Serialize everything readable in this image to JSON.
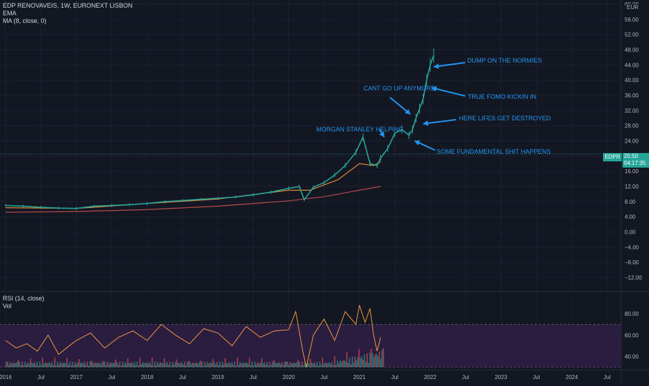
{
  "header": {
    "symbol_line": "EDP RENOVAVEIS, 1W, EURONEXT LISBON",
    "indicator_1": "EMA",
    "indicator_2": "MA (8, close, 0)",
    "currency": "EUR"
  },
  "price_tag": {
    "ticker": "EDPR",
    "price": "20.50",
    "countdown": "04:17:35"
  },
  "rsi_panel": {
    "label_1": "RSI (14, close)",
    "label_2": "Vol"
  },
  "colors": {
    "background": "#131722",
    "candles": "#26a69a",
    "ma_line": "#e08a3c",
    "ema_line": "#b84c4c",
    "annotation": "#2196f3",
    "rsi_line": "#f09a3e",
    "rsi_band": "#2a1d3f"
  },
  "chart_data": [
    {
      "type": "line",
      "title": "EDP RENOVAVEIS, 1W, EURONEXT LISBON",
      "ylabel": "EUR",
      "ylim": [
        -14,
        60
      ],
      "y_ticks": [
        "60.00",
        "56.00",
        "52.00",
        "48.00",
        "44.00",
        "40.00",
        "36.00",
        "32.00",
        "28.00",
        "24.00",
        "20.00",
        "16.00",
        "12.00",
        "8.00",
        "4.00",
        "0.00",
        "−4.00",
        "−8.00",
        "−12.00"
      ],
      "x_ticks": [
        "2016",
        "Jul",
        "2017",
        "Jul",
        "2018",
        "Jul",
        "2019",
        "Jul",
        "2020",
        "Jul",
        "2021",
        "Jul",
        "2022",
        "Jul",
        "2023",
        "Jul",
        "2024",
        "Jul"
      ],
      "series": [
        {
          "name": "EDPR",
          "x": [
            2016.0,
            2016.25,
            2016.5,
            2016.75,
            2017.0,
            2017.25,
            2017.5,
            2017.75,
            2018.0,
            2018.25,
            2018.5,
            2018.75,
            2019.0,
            2019.25,
            2019.5,
            2019.75,
            2020.0,
            2020.15,
            2020.22,
            2020.35,
            2020.5,
            2020.65,
            2020.8,
            2020.95,
            2021.05,
            2021.15,
            2021.25,
            2021.3,
            2021.4,
            2021.5,
            2021.6,
            2021.7,
            2021.75,
            2021.8,
            2021.85,
            2021.9,
            2021.95,
            2022.0,
            2022.05
          ],
          "values": [
            7.0,
            6.8,
            6.5,
            6.3,
            6.2,
            6.8,
            7.0,
            7.2,
            7.5,
            8.0,
            8.3,
            8.6,
            8.9,
            9.2,
            9.8,
            10.5,
            11.5,
            12.0,
            8.5,
            11.8,
            13.0,
            15.0,
            17.5,
            21.0,
            25.0,
            18.0,
            17.5,
            19.5,
            22.0,
            26.0,
            27.0,
            25.5,
            27.0,
            30.0,
            32.5,
            35.0,
            40.0,
            44.0,
            46.5
          ]
        },
        {
          "name": "MA (8, close, 0)",
          "x": [
            2016.0,
            2017.0,
            2018.0,
            2019.0,
            2020.0,
            2020.3,
            2020.7,
            2021.0,
            2021.2,
            2021.3
          ],
          "values": [
            6.4,
            6.2,
            7.5,
            8.7,
            11.0,
            11.0,
            13.8,
            18.0,
            17.5,
            18.5
          ]
        },
        {
          "name": "EMA",
          "x": [
            2016.0,
            2017.0,
            2018.0,
            2019.0,
            2020.0,
            2020.5,
            2021.0,
            2021.3
          ],
          "values": [
            5.2,
            5.4,
            5.9,
            6.8,
            8.2,
            9.3,
            11.0,
            12.0
          ]
        }
      ],
      "annotations": [
        "MORGAN STANLEY HELPING",
        "CANT GO UP ANYMORE",
        "DUMP ON THE NORMIES",
        "TRUE FOMO KICKIN IN",
        "HERE LIFES GET DESTROYED",
        "SOME FUNDAMENTAL SHIT HAPPENS"
      ]
    },
    {
      "type": "line",
      "title": "RSI (14, close)",
      "ylim": [
        30,
        95
      ],
      "y_ticks": [
        "80.00",
        "60.00",
        "40.00"
      ],
      "band": [
        30,
        70
      ],
      "series": [
        {
          "name": "RSI (14, close)",
          "x": [
            2016.0,
            2016.15,
            2016.3,
            2016.45,
            2016.6,
            2016.75,
            2016.9,
            2017.0,
            2017.2,
            2017.4,
            2017.6,
            2017.8,
            2018.0,
            2018.2,
            2018.4,
            2018.6,
            2018.8,
            2019.0,
            2019.2,
            2019.4,
            2019.6,
            2019.8,
            2020.0,
            2020.1,
            2020.2,
            2020.25,
            2020.35,
            2020.5,
            2020.65,
            2020.8,
            2020.95,
            2021.0,
            2021.08,
            2021.15,
            2021.2,
            2021.25,
            2021.3
          ],
          "values": [
            55,
            48,
            52,
            45,
            60,
            42,
            50,
            55,
            62,
            48,
            58,
            64,
            55,
            70,
            60,
            52,
            66,
            62,
            50,
            68,
            58,
            64,
            65,
            82,
            45,
            30,
            60,
            75,
            55,
            82,
            70,
            88,
            72,
            85,
            60,
            45,
            58
          ]
        }
      ]
    }
  ]
}
